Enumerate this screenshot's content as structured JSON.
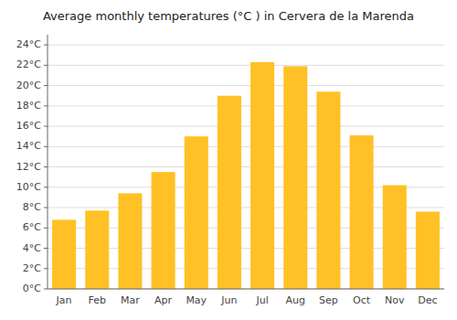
{
  "chart_data": {
    "type": "bar",
    "title": "Average monthly temperatures (°C ) in Cervera de la Marenda",
    "categories": [
      "Jan",
      "Feb",
      "Mar",
      "Apr",
      "May",
      "Jun",
      "Jul",
      "Aug",
      "Sep",
      "Oct",
      "Nov",
      "Dec"
    ],
    "values": [
      6.8,
      7.7,
      9.4,
      11.5,
      15.0,
      19.0,
      22.3,
      21.9,
      19.4,
      15.1,
      10.2,
      7.6
    ],
    "color": "#FFC125",
    "ylim": [
      0,
      25
    ],
    "yticks": [
      {
        "value": 0,
        "label": "0°C"
      },
      {
        "value": 2,
        "label": "2°C"
      },
      {
        "value": 4,
        "label": "4°C"
      },
      {
        "value": 6,
        "label": "6°C"
      },
      {
        "value": 8,
        "label": "8°C"
      },
      {
        "value": 10,
        "label": "10°C"
      },
      {
        "value": 12,
        "label": "12°C"
      },
      {
        "value": 14,
        "label": "14°C"
      },
      {
        "value": 16,
        "label": "16°C"
      },
      {
        "value": 18,
        "label": "18°C"
      },
      {
        "value": 20,
        "label": "20°C"
      },
      {
        "value": 22,
        "label": "22°C"
      },
      {
        "value": 24,
        "label": "24°C"
      }
    ],
    "grid": true
  }
}
